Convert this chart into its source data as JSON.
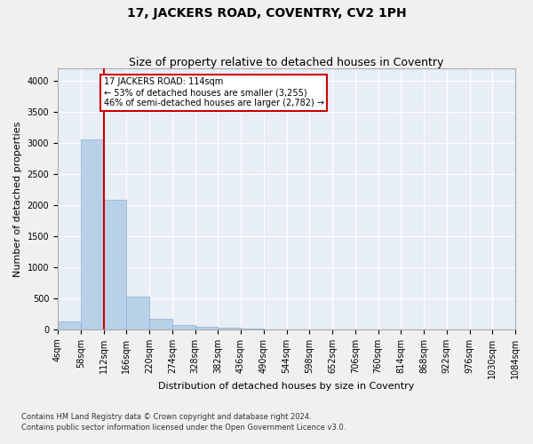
{
  "title": "17, JACKERS ROAD, COVENTRY, CV2 1PH",
  "subtitle": "Size of property relative to detached houses in Coventry",
  "xlabel": "Distribution of detached houses by size in Coventry",
  "ylabel": "Number of detached properties",
  "property_size": 114,
  "annotation_line1": "17 JACKERS ROAD: 114sqm",
  "annotation_line2": "← 53% of detached houses are smaller (3,255)",
  "annotation_line3": "46% of semi-detached houses are larger (2,782) →",
  "footnote1": "Contains HM Land Registry data © Crown copyright and database right 2024.",
  "footnote2": "Contains public sector information licensed under the Open Government Licence v3.0.",
  "bar_color": "#b8d0e8",
  "bar_edge_color": "#8ab0d0",
  "line_color": "#cc0000",
  "annotation_box_edge_color": "#cc0000",
  "plot_bg_color": "#e8eef6",
  "fig_bg_color": "#f0f0f0",
  "grid_color": "#ffffff",
  "bin_edges": [
    4,
    58,
    112,
    166,
    220,
    274,
    328,
    382,
    436,
    490,
    544,
    598,
    652,
    706,
    760,
    814,
    868,
    922,
    976,
    1030,
    1084
  ],
  "bar_heights": [
    130,
    3050,
    2080,
    520,
    175,
    68,
    48,
    28,
    10,
    0,
    0,
    0,
    0,
    0,
    0,
    0,
    0,
    0,
    0,
    0
  ],
  "ylim": [
    0,
    4200
  ],
  "yticks": [
    0,
    500,
    1000,
    1500,
    2000,
    2500,
    3000,
    3500,
    4000
  ],
  "title_fontsize": 10,
  "subtitle_fontsize": 9,
  "label_fontsize": 8,
  "tick_fontsize": 7,
  "footnote_fontsize": 6
}
